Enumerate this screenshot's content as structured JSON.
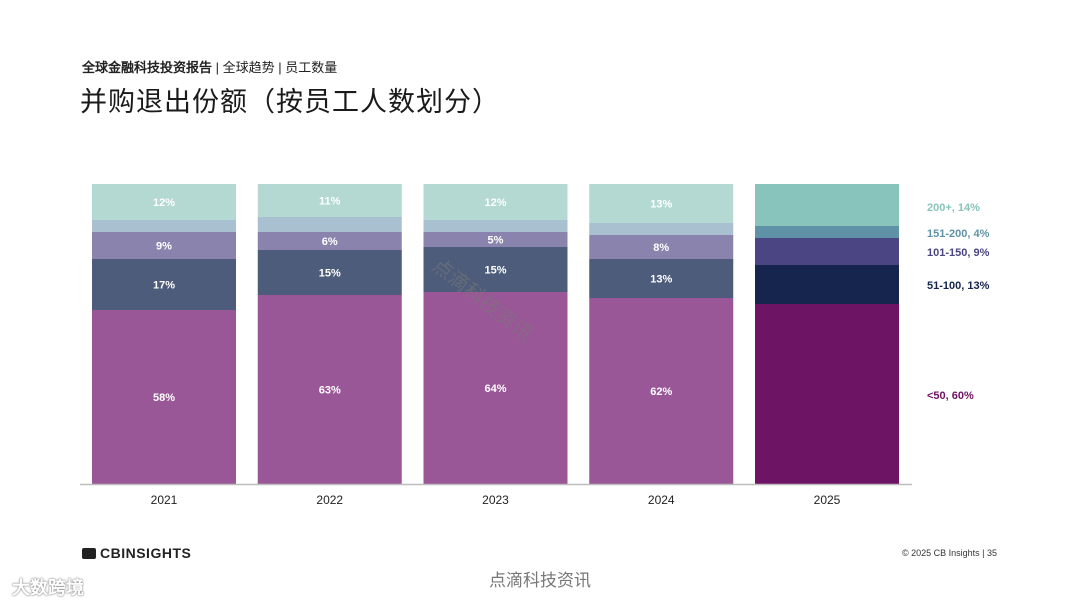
{
  "header": {
    "breadcrumb_bold": "全球金融科技投资报告",
    "breadcrumb_rest": " | 全球趋势 | 员工数量",
    "title": "并购退出份额（按员工人数划分）"
  },
  "colors": {
    "2021-2024": {
      "<50": "#9a5797",
      "51-100": "#4d5c7a",
      "101-150": "#8a83ad",
      "151-200": "#a9c0d0",
      "200+": "#b3d9d2"
    },
    "2025": {
      "<50": "#6d1465",
      "51-100": "#16254d",
      "101-150": "#4b4583",
      "151-200": "#5f92a6",
      "200+": "#88c4bb"
    },
    "legend_text": {
      "<50": "#6d1465",
      "51-100": "#16254d",
      "101-150": "#4b4583",
      "151-200": "#5f92a6",
      "200+": "#88c4bb"
    }
  },
  "chart_data": {
    "type": "bar",
    "stacked": true,
    "categories": [
      "2021",
      "2022",
      "2023",
      "2024",
      "2025"
    ],
    "ylim": [
      0,
      100
    ],
    "series": [
      {
        "name": "<50",
        "values": [
          58,
          63,
          64,
          62,
          60
        ],
        "labels": [
          "58%",
          "63%",
          "64%",
          "62%",
          ""
        ]
      },
      {
        "name": "51-100",
        "values": [
          17,
          15,
          15,
          13,
          13
        ],
        "labels": [
          "17%",
          "15%",
          "15%",
          "13%",
          ""
        ]
      },
      {
        "name": "101-150",
        "values": [
          9,
          6,
          5,
          8,
          9
        ],
        "labels": [
          "9%",
          "6%",
          "5%",
          "8%",
          ""
        ]
      },
      {
        "name": "151-200",
        "values": [
          4,
          5,
          4,
          4,
          4
        ],
        "labels": [
          "",
          "",
          "",
          "",
          ""
        ]
      },
      {
        "name": "200+",
        "values": [
          12,
          11,
          12,
          13,
          14
        ],
        "labels": [
          "12%",
          "11%",
          "12%",
          "13%",
          ""
        ]
      }
    ],
    "legend": [
      {
        "key": "200+",
        "text": "200+, 14%"
      },
      {
        "key": "151-200",
        "text": "151-200, 4%"
      },
      {
        "key": "101-150",
        "text": "101-150, 9%"
      },
      {
        "key": "51-100",
        "text": "51-100, 13%"
      },
      {
        "key": "<50",
        "text": "<50, 60%"
      }
    ],
    "legend_placement": "right"
  },
  "footer": {
    "logo": "CBINSIGHTS",
    "copyright": "© 2025 CB Insights | 35"
  },
  "watermarks": {
    "bottom": "点滴科技资讯",
    "left": "大数跨境",
    "diagonal": "点滴科技资讯"
  }
}
